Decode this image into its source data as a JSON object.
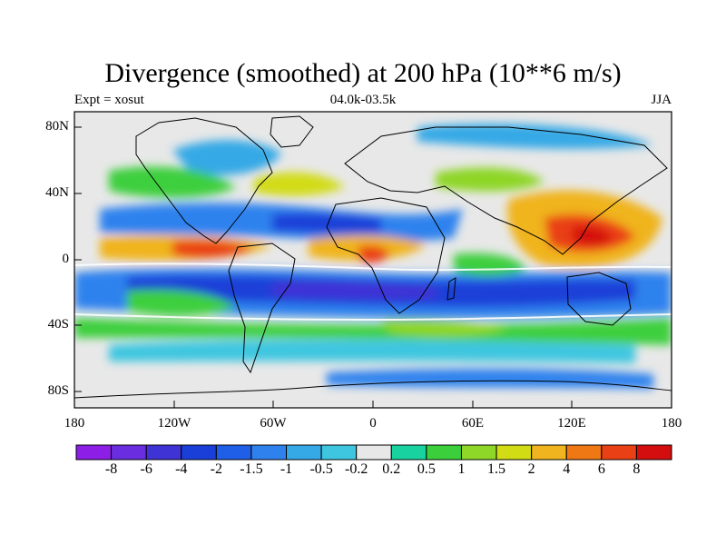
{
  "title": "Divergence (smoothed) at 200 hPa (10**6 m/s)",
  "left_subtitle": "Expt = xosut",
  "center_subtitle": "04.0k-03.5k",
  "right_subtitle": "JJA",
  "y_ticks": [
    "80N",
    "40N",
    "0",
    "40S",
    "80S"
  ],
  "x_ticks": [
    "180",
    "120W",
    "60W",
    "0",
    "60E",
    "120E",
    "180"
  ],
  "colorbar": {
    "labels": [
      "-8",
      "-6",
      "-4",
      "-2",
      "-1.5",
      "-1",
      "-0.5",
      "-0.2",
      "0.2",
      "0.5",
      "1",
      "1.5",
      "2",
      "4",
      "6",
      "8"
    ],
    "colors": [
      "#8c1ee6",
      "#6a2ee0",
      "#3f33d6",
      "#1a3fd8",
      "#1f5ee6",
      "#2f82ee",
      "#35a9e6",
      "#3ec6e0",
      "#e8e8e8",
      "#18d2a0",
      "#3ccf3c",
      "#8ed628",
      "#d2dc14",
      "#f0b41e",
      "#f07814",
      "#ea4016",
      "#d40e0e"
    ]
  }
}
